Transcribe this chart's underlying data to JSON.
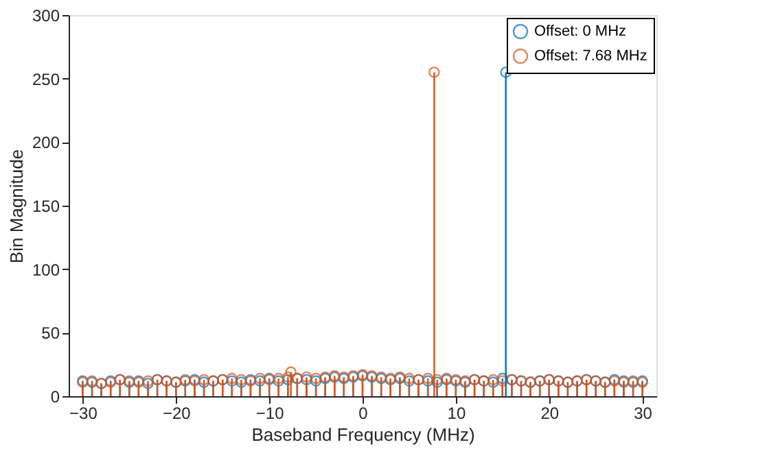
{
  "chart_data": {
    "type": "lollipop",
    "xlabel": "Baseband Frequency (MHz)",
    "ylabel": "Bin Magnitude",
    "xlim": [
      -31.5,
      31.5
    ],
    "xticks": [
      -30,
      -20,
      -10,
      0,
      10,
      20,
      30
    ],
    "ylim": [
      0,
      300
    ],
    "yticks": [
      0,
      50,
      100,
      150,
      200,
      250,
      300
    ],
    "grid": false,
    "legend": "top right",
    "marker": "circle",
    "series": [
      {
        "name": "Offset: 0 MHz",
        "color": "#0072bd",
        "x": [
          -30,
          -29,
          -28,
          -27,
          -26,
          -25,
          -24,
          -23,
          -22,
          -21,
          -20,
          -19,
          -18,
          -17,
          -16,
          -15,
          -14,
          -13,
          -12,
          -11,
          -10,
          -9,
          -8,
          -7,
          -6,
          -5,
          -4,
          -3,
          -2,
          -1,
          0,
          1,
          2,
          3,
          4,
          5,
          6,
          7,
          8,
          9,
          10,
          11,
          12,
          13,
          14,
          15,
          15.36,
          16,
          17,
          18,
          19,
          20,
          21,
          22,
          23,
          24,
          25,
          26,
          27,
          28,
          29,
          30
        ],
        "values": [
          12,
          11,
          10,
          12,
          13,
          11,
          12,
          10,
          13,
          12,
          11,
          12,
          13,
          11,
          12,
          13,
          12,
          11,
          13,
          12,
          14,
          12,
          13,
          14,
          13,
          12,
          14,
          15,
          14,
          15,
          16,
          15,
          14,
          13,
          14,
          12,
          13,
          12,
          11,
          13,
          12,
          11,
          13,
          12,
          11,
          14,
          255,
          13,
          12,
          11,
          12,
          13,
          12,
          11,
          12,
          13,
          12,
          11,
          13,
          12,
          11,
          12
        ]
      },
      {
        "name": "Offset: 7.68 MHz",
        "color": "#d95319",
        "x": [
          -30,
          -29,
          -28,
          -27,
          -26,
          -25,
          -24,
          -23,
          -22,
          -21,
          -20,
          -19,
          -18,
          -17,
          -16,
          -15,
          -14,
          -13,
          -12,
          -11,
          -10,
          -9,
          -8,
          -7.68,
          -7,
          -6,
          -5,
          -4,
          -3,
          -2,
          -1,
          0,
          1,
          2,
          3,
          4,
          5,
          6,
          7,
          7.68,
          8,
          9,
          10,
          11,
          12,
          13,
          14,
          15,
          16,
          17,
          18,
          19,
          20,
          21,
          22,
          23,
          24,
          25,
          26,
          27,
          28,
          29,
          30
        ],
        "values": [
          11,
          12,
          10,
          11,
          13,
          12,
          11,
          12,
          13,
          12,
          11,
          13,
          12,
          13,
          12,
          13,
          14,
          13,
          12,
          14,
          13,
          14,
          15,
          19,
          14,
          15,
          14,
          15,
          16,
          15,
          16,
          17,
          16,
          15,
          14,
          15,
          14,
          13,
          14,
          255,
          13,
          14,
          13,
          12,
          13,
          12,
          13,
          12,
          13,
          12,
          11,
          12,
          13,
          12,
          11,
          12,
          13,
          12,
          11,
          12,
          11,
          12,
          11
        ]
      }
    ]
  }
}
